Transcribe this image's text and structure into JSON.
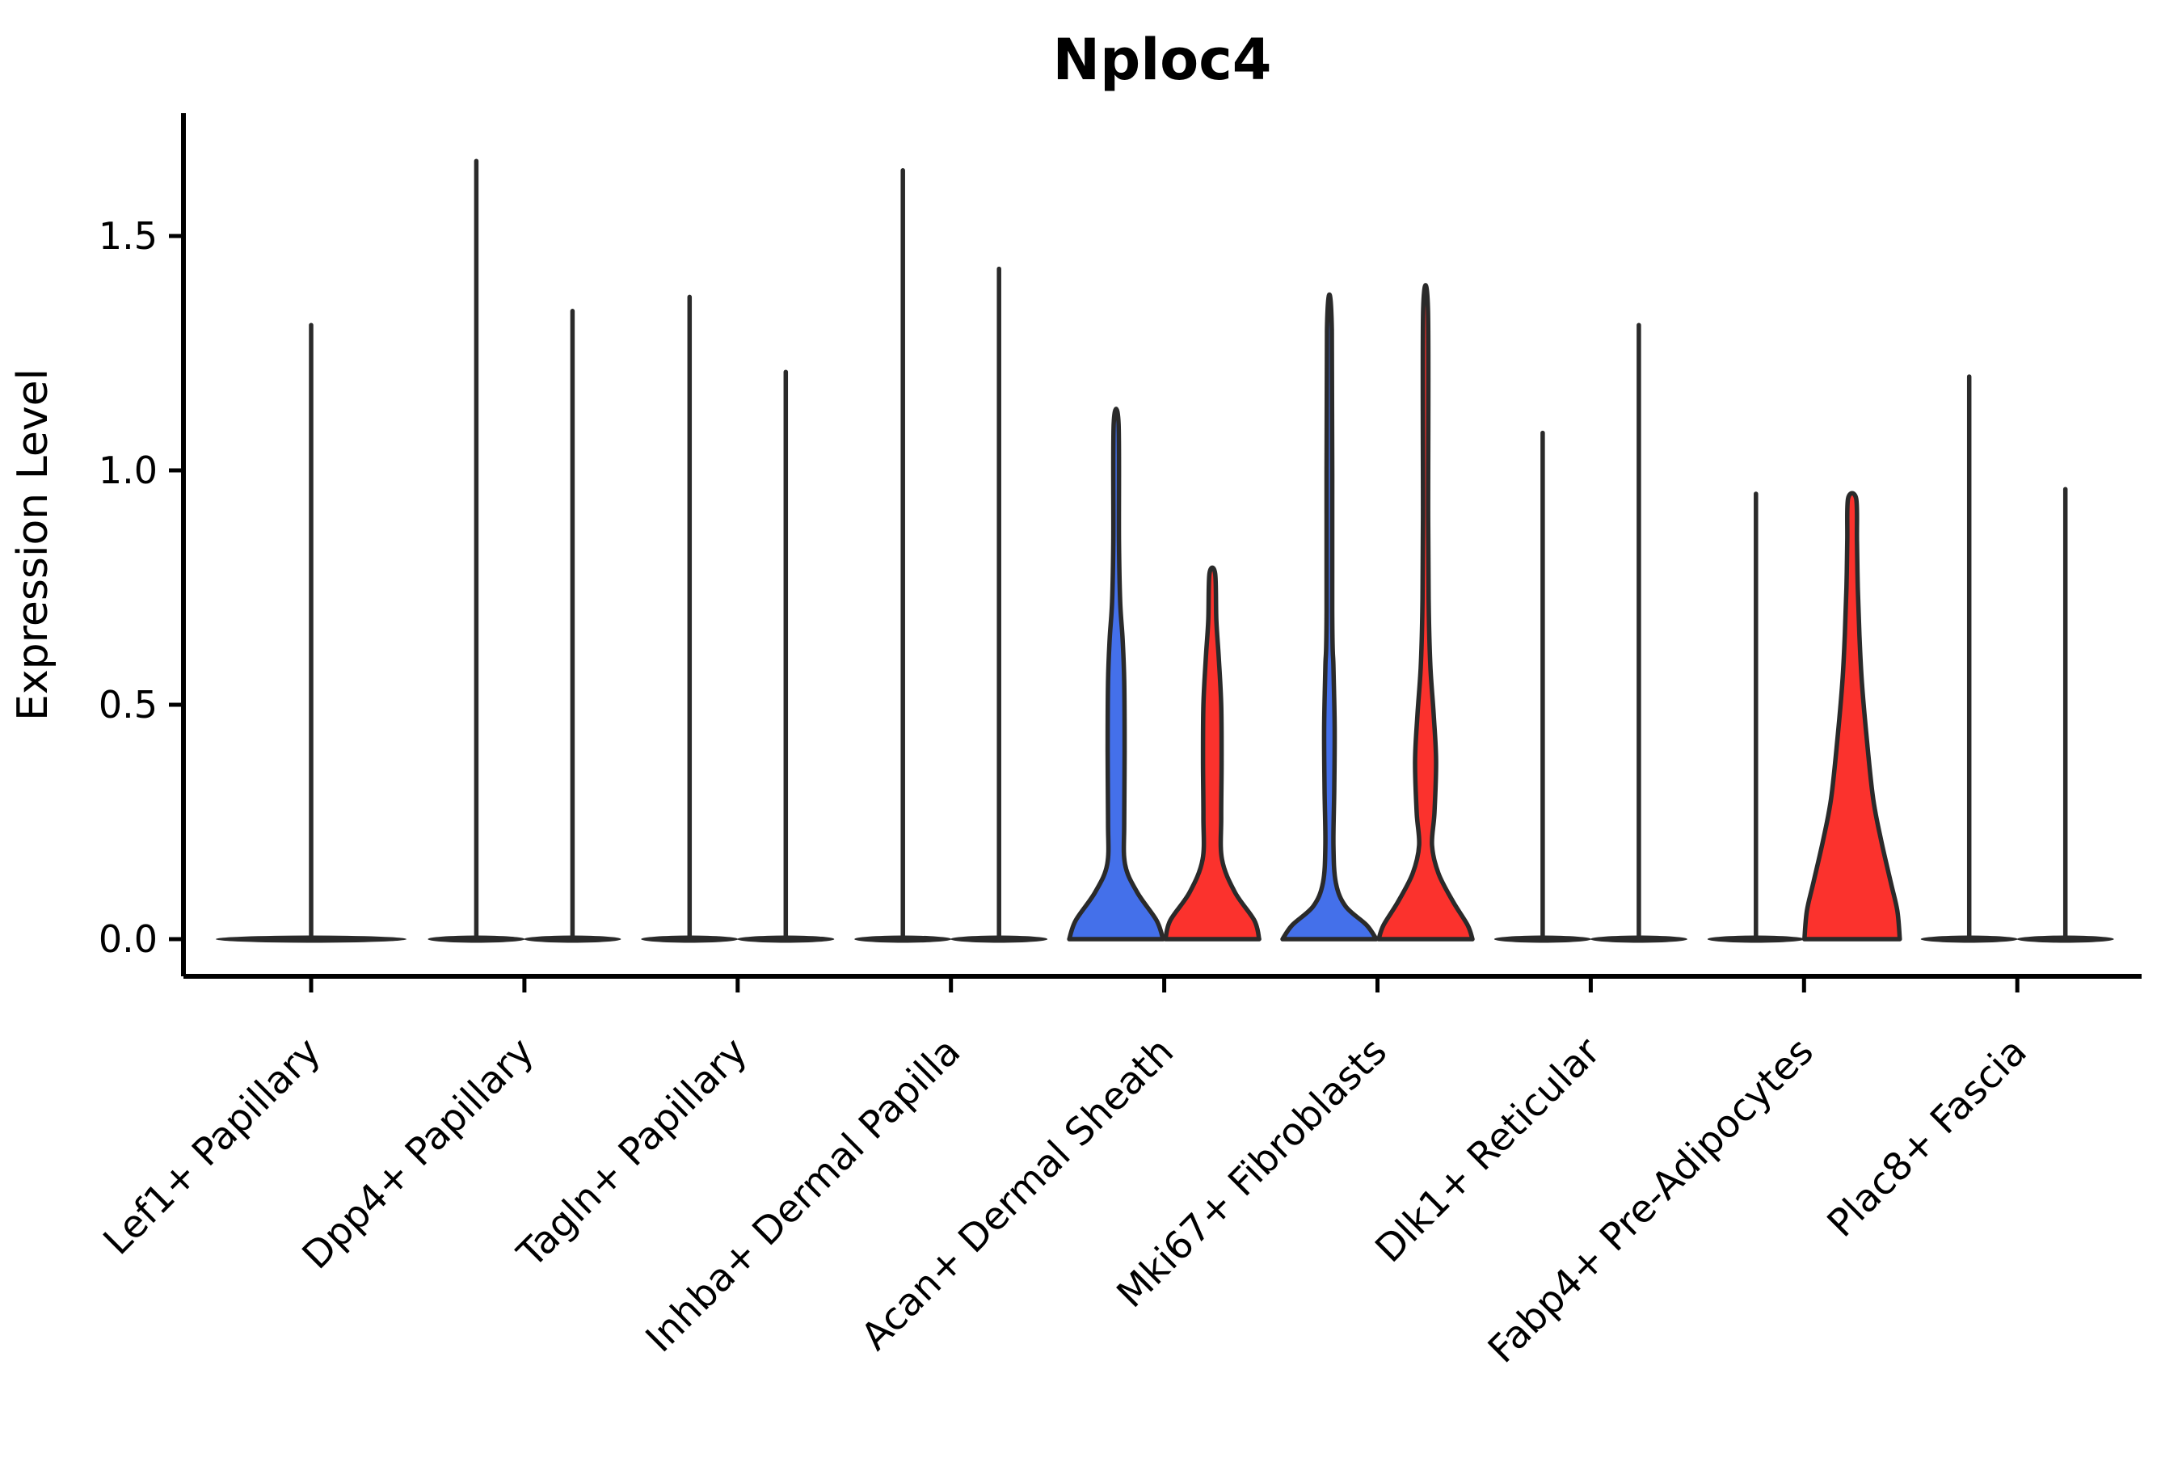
{
  "chart_data": {
    "type": "violin",
    "title": "Nploc4",
    "ylabel": "Expression Level",
    "xlabel": "",
    "yticks": [
      0.0,
      0.5,
      1.0,
      1.5
    ],
    "ylim": [
      0,
      1.76
    ],
    "grid": false,
    "legend": "none",
    "split_colors": {
      "blue": "#4470EA",
      "red": "#FB322D",
      "single": "#2A2A2A",
      "outline": "#2A2A2A"
    },
    "groups": [
      {
        "label": "Lef1+ Papillary",
        "violins": [
          {
            "split": "single",
            "shape": "spike",
            "max": 1.31
          }
        ]
      },
      {
        "label": "Dpp4+ Papillary",
        "violins": [
          {
            "split": "blue",
            "shape": "spike",
            "max": 1.66
          },
          {
            "split": "red",
            "shape": "spike",
            "max": 1.34
          }
        ]
      },
      {
        "label": "Tagln+ Papillary",
        "violins": [
          {
            "split": "blue",
            "shape": "spike",
            "max": 1.37
          },
          {
            "split": "red",
            "shape": "spike",
            "max": 1.21
          }
        ]
      },
      {
        "label": "Inhba+ Dermal Papilla",
        "violins": [
          {
            "split": "blue",
            "shape": "spike",
            "max": 1.64
          },
          {
            "split": "red",
            "shape": "spike",
            "max": 1.43
          }
        ]
      },
      {
        "label": "Acan+ Dermal Sheath",
        "violins": [
          {
            "split": "blue",
            "shape": "body",
            "max": 1.1,
            "profile": [
              [
                0,
                58
              ],
              [
                0.04,
                50
              ],
              [
                0.1,
                26
              ],
              [
                0.16,
                11
              ],
              [
                0.25,
                10
              ],
              [
                0.4,
                10.5
              ],
              [
                0.55,
                10
              ],
              [
                0.64,
                8
              ],
              [
                0.72,
                5
              ],
              [
                0.85,
                3.5
              ],
              [
                1.1,
                3
              ]
            ]
          },
          {
            "split": "red",
            "shape": "body",
            "max": 0.78,
            "profile": [
              [
                0,
                58
              ],
              [
                0.04,
                52
              ],
              [
                0.1,
                28
              ],
              [
                0.17,
                12
              ],
              [
                0.26,
                11
              ],
              [
                0.38,
                11.5
              ],
              [
                0.5,
                11
              ],
              [
                0.6,
                8
              ],
              [
                0.68,
                5
              ],
              [
                0.78,
                3.5
              ]
            ]
          }
        ]
      },
      {
        "label": "Mki67+ Fibroblasts",
        "violins": [
          {
            "split": "blue",
            "shape": "body",
            "max": 1.3,
            "profile": [
              [
                0,
                58
              ],
              [
                0.03,
                46
              ],
              [
                0.07,
                20
              ],
              [
                0.12,
                8
              ],
              [
                0.2,
                5
              ],
              [
                0.32,
                6
              ],
              [
                0.45,
                6.5
              ],
              [
                0.58,
                5
              ],
              [
                0.7,
                3.5
              ],
              [
                1.3,
                3
              ]
            ]
          },
          {
            "split": "red",
            "shape": "body",
            "max": 1.34,
            "profile": [
              [
                0,
                58
              ],
              [
                0.03,
                52
              ],
              [
                0.08,
                34
              ],
              [
                0.14,
                16
              ],
              [
                0.2,
                8
              ],
              [
                0.27,
                11
              ],
              [
                0.38,
                13
              ],
              [
                0.48,
                10
              ],
              [
                0.58,
                6
              ],
              [
                0.7,
                4
              ],
              [
                0.9,
                3.2
              ],
              [
                1.34,
                3
              ]
            ]
          }
        ]
      },
      {
        "label": "Dlk1+ Reticular",
        "violins": [
          {
            "split": "blue",
            "shape": "spike",
            "max": 1.08
          },
          {
            "split": "red",
            "shape": "spike",
            "max": 1.31
          }
        ]
      },
      {
        "label": "Fabp4+ Pre-Adipocytes",
        "violins": [
          {
            "split": "blue",
            "shape": "spike",
            "max": 0.95
          },
          {
            "split": "red",
            "shape": "body",
            "max": 0.94,
            "profile": [
              [
                0,
                59
              ],
              [
                0.06,
                56
              ],
              [
                0.12,
                48
              ],
              [
                0.21,
                36
              ],
              [
                0.3,
                26
              ],
              [
                0.43,
                18
              ],
              [
                0.55,
                12
              ],
              [
                0.65,
                9
              ],
              [
                0.75,
                7
              ],
              [
                0.85,
                6
              ],
              [
                0.94,
                5
              ]
            ]
          }
        ]
      },
      {
        "label": "Plac8+ Fascia",
        "violins": [
          {
            "split": "blue",
            "shape": "spike",
            "max": 1.2
          },
          {
            "split": "red",
            "shape": "spike",
            "max": 0.96
          }
        ]
      }
    ]
  }
}
